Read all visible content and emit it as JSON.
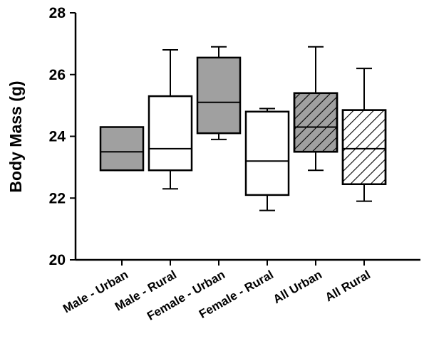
{
  "chart_data": {
    "type": "box",
    "title": "",
    "xlabel": "",
    "ylabel": "Body Mass (g)",
    "ylim": [
      20,
      28
    ],
    "yticks": [
      20,
      22,
      24,
      26,
      28
    ],
    "grid": false,
    "legend": "none",
    "categories": [
      "Male - Urban",
      "Male - Rural",
      "Female - Urban",
      "Female - Rural",
      "All Urban",
      "All Rural"
    ],
    "boxes": [
      {
        "category": "Male - Urban",
        "whisker_low": 22.9,
        "q1": 22.9,
        "median": 23.5,
        "q3": 24.3,
        "whisker_high": 24.3,
        "fill": "#a0a0a0",
        "hatched": false
      },
      {
        "category": "Male - Rural",
        "whisker_low": 22.3,
        "q1": 22.9,
        "median": 23.6,
        "q3": 25.3,
        "whisker_high": 26.8,
        "fill": "#ffffff",
        "hatched": false
      },
      {
        "category": "Female - Urban",
        "whisker_low": 23.9,
        "q1": 24.1,
        "median": 25.1,
        "q3": 26.55,
        "whisker_high": 26.9,
        "fill": "#a0a0a0",
        "hatched": false
      },
      {
        "category": "Female - Rural",
        "whisker_low": 21.6,
        "q1": 22.1,
        "median": 23.2,
        "q3": 24.8,
        "whisker_high": 24.9,
        "fill": "#ffffff",
        "hatched": false
      },
      {
        "category": "All Urban",
        "whisker_low": 22.9,
        "q1": 23.5,
        "median": 24.3,
        "q3": 25.4,
        "whisker_high": 26.9,
        "fill": "#a0a0a0",
        "hatched": true
      },
      {
        "category": "All Rural",
        "whisker_low": 21.9,
        "q1": 22.45,
        "median": 23.6,
        "q3": 24.85,
        "whisker_high": 26.2,
        "fill": "#ffffff",
        "hatched": true
      }
    ]
  }
}
